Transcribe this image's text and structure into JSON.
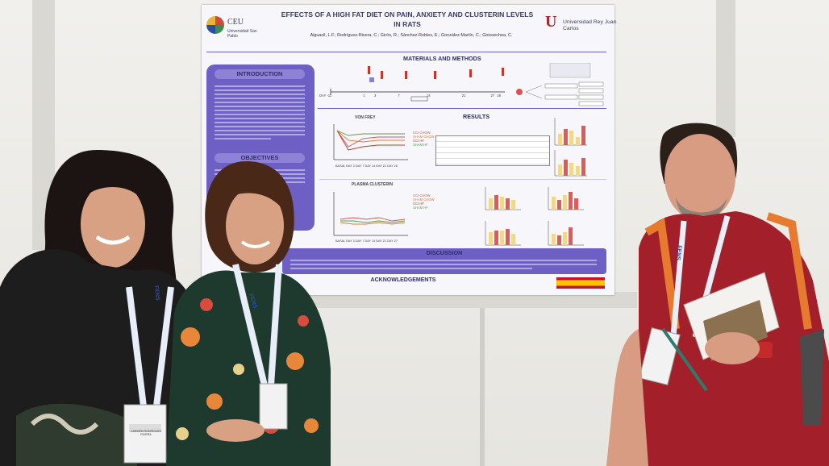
{
  "poster": {
    "title_line1": "EFFECTS OF A HIGH FAT DIET ON PAIN, ANXIETY AND CLUSTERIN LEVELS",
    "title_line2": "IN RATS",
    "authors": "Alguacil, L.F.; Rodríguez-Rivera, C.; Girón, R.; Sánchez-Robles, E.; González-Martín, C.; Goicoechea, C.",
    "logo_left_name": "CEU",
    "logo_left_sub": "Universidad San Pablo",
    "logo_right_mark": "U",
    "logo_right_name": "Universidad Rey Juan Carlos",
    "sections": {
      "introduction": "INTRODUCTION",
      "objectives": "OBJECTIVES",
      "materials": "MATERIALS AND METHODS",
      "results": "RESULTS",
      "von_frey": "VON FREY",
      "plasma": "PLASMA CLUSTERIN",
      "discussion": "DISCUSSION",
      "acknowledgements": "ACKNOWLEDGEMENTS"
    },
    "timeline_labels": [
      "DAY -11",
      "1",
      "3",
      "7",
      "14",
      "21",
      "27",
      "28"
    ],
    "legend": [
      "CCI CHOW",
      "SHAM CHOW",
      "CCI HF",
      "SHAM HF"
    ],
    "legend_colors": [
      "#d9534f",
      "#e07b39",
      "#c0392b",
      "#5a9e4b"
    ],
    "von_frey_xlabel": "BASAL DAY 3 DAY 7 DAY 14 DAY 21 DAY 28",
    "plasma_xlabel": "BASAL DAY 3 DAY 7 DAY 14 DAY 21 DAY 27"
  },
  "badges": {
    "lanyard_text": "FENS",
    "badge_name_left": "CARMEN RODRÍGUEZ RIVERA"
  },
  "colors": {
    "poster_accent": "#6d5fc4",
    "title_color": "#3b3b6b",
    "shirt_red": "#a3202b",
    "lanyard_blue": "#2a4f9e"
  }
}
